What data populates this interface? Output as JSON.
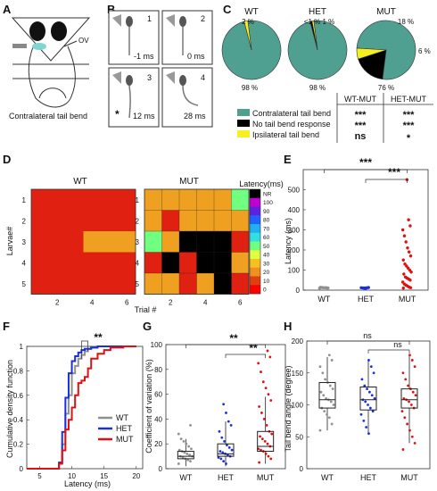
{
  "panels": {
    "A": {
      "letter": "A",
      "ov_label": "OV",
      "caption": "Contralateral tail bend"
    },
    "B": {
      "letter": "B",
      "frames": [
        {
          "num": "1",
          "time": "-1 ms",
          "mark": ""
        },
        {
          "num": "2",
          "time": "0 ms",
          "mark": ""
        },
        {
          "num": "3",
          "time": "12 ms",
          "mark": "*"
        },
        {
          "num": "4",
          "time": "28 ms",
          "mark": ""
        }
      ]
    },
    "C": {
      "letter": "C"
    },
    "D": {
      "letter": "D"
    },
    "E": {
      "letter": "E"
    },
    "F": {
      "letter": "F"
    },
    "G": {
      "letter": "G"
    },
    "H": {
      "letter": "H"
    }
  },
  "chart_data": [
    {
      "id": "C",
      "type": "pie",
      "groups": [
        {
          "name": "WT",
          "slices": [
            98,
            0,
            2
          ],
          "labels": {
            "main": "98 %",
            "ipsi": "2 %"
          }
        },
        {
          "name": "HET",
          "slices": [
            98,
            1,
            1
          ],
          "labels": {
            "main": "98 %",
            "ipsi": "<1 % 1 %"
          }
        },
        {
          "name": "MUT",
          "slices": [
            76,
            18,
            6
          ],
          "labels": {
            "main": "76 %",
            "none": "18 %",
            "ipsi": "6 %"
          }
        }
      ],
      "categories": [
        "Contralateral tail bend",
        "No tail bend response",
        "Ipsilateral tail bend"
      ],
      "colors": [
        "#4fa090",
        "#000000",
        "#f5f020"
      ],
      "table": {
        "headers": [
          "WT-MUT",
          "HET-MUT"
        ],
        "rows": [
          [
            "***",
            "***"
          ],
          [
            "***",
            "***"
          ],
          [
            "ns",
            "*"
          ]
        ]
      }
    },
    {
      "id": "D",
      "type": "heatmap",
      "titles": [
        "WT",
        "MUT"
      ],
      "xlabel": "Trial #",
      "ylabel": "Larvae#",
      "xticks": [
        "2",
        "4",
        "6"
      ],
      "yticks": [
        "1",
        "2",
        "3",
        "4",
        "5"
      ],
      "colorbar_title": "Latency(ms)",
      "colorbar_ticks": [
        "NR",
        "100",
        "90",
        "80",
        "70",
        "60",
        "50",
        "40",
        "30",
        "20",
        "10",
        "0"
      ],
      "colorbar_colors": [
        "#000000",
        "#c000d0",
        "#6020e0",
        "#2060ff",
        "#20b0f0",
        "#30e0e0",
        "#70ff80",
        "#e0ff40",
        "#f5c020",
        "#f09020",
        "#e04010",
        "#ff0000"
      ],
      "WT": [
        [
          10,
          10,
          10,
          10,
          10,
          10
        ],
        [
          10,
          10,
          10,
          10,
          10,
          10
        ],
        [
          10,
          10,
          10,
          20,
          20,
          20
        ],
        [
          10,
          10,
          10,
          10,
          10,
          10
        ],
        [
          10,
          10,
          10,
          10,
          10,
          10
        ]
      ],
      "MUT": [
        [
          20,
          20,
          20,
          20,
          20,
          60
        ],
        [
          20,
          10,
          20,
          20,
          20,
          20
        ],
        [
          60,
          20,
          "NR",
          "NR",
          "NR",
          10
        ],
        [
          10,
          "NR",
          10,
          "NR",
          "NR",
          20
        ],
        [
          20,
          20,
          10,
          20,
          "NR",
          10
        ]
      ]
    },
    {
      "id": "E",
      "type": "scatter",
      "categories": [
        "WT",
        "HET",
        "MUT"
      ],
      "ylabel": "Latency (ms)",
      "ylim": [
        0,
        600
      ],
      "yticks": [
        "0",
        "100",
        "200",
        "300",
        "400",
        "500"
      ],
      "colors": [
        "#909090",
        "#1a2ee0",
        "#e01010"
      ],
      "series": [
        {
          "name": "WT",
          "values": [
            10,
            11,
            12,
            12,
            13,
            14,
            11,
            12
          ]
        },
        {
          "name": "HET",
          "values": [
            9,
            10,
            11,
            12,
            13,
            12,
            10,
            11
          ]
        },
        {
          "name": "MUT",
          "values": [
            10,
            12,
            15,
            20,
            25,
            30,
            40,
            50,
            55,
            60,
            65,
            80,
            90,
            100,
            110,
            120,
            130,
            150,
            170,
            190,
            210,
            240,
            270,
            300,
            320,
            350,
            550
          ]
        }
      ],
      "significance": [
        "***",
        "***"
      ]
    },
    {
      "id": "F",
      "type": "line",
      "xlabel": "Latency (ms)",
      "ylabel": "Cumulative density function",
      "xlim": [
        3,
        21
      ],
      "ylim": [
        0,
        1
      ],
      "xticks": [
        "5",
        "10",
        "15",
        "20"
      ],
      "yticks": [
        "0",
        "0.2",
        "0.4",
        "0.6",
        "0.8",
        "1"
      ],
      "series": [
        {
          "name": "WT",
          "color": "#909090",
          "x": [
            3,
            7,
            8,
            8.5,
            9,
            9.5,
            10,
            10.5,
            11,
            11.5,
            12,
            12.5,
            13,
            14,
            16,
            20
          ],
          "y": [
            0,
            0,
            0.05,
            0.2,
            0.45,
            0.6,
            0.78,
            0.84,
            0.9,
            0.93,
            0.96,
            0.98,
            0.99,
            1,
            1,
            1
          ]
        },
        {
          "name": "HET",
          "color": "#1a2ee0",
          "x": [
            3,
            7,
            8,
            8.5,
            9,
            9.5,
            10,
            10.5,
            11,
            11.5,
            12,
            13,
            14,
            16,
            20
          ],
          "y": [
            0,
            0,
            0.05,
            0.3,
            0.58,
            0.78,
            0.88,
            0.92,
            0.95,
            0.97,
            0.98,
            0.99,
            1,
            1,
            1
          ]
        },
        {
          "name": "MUT",
          "color": "#e01010",
          "x": [
            3,
            7,
            8,
            8.5,
            9,
            9.5,
            10,
            10.5,
            11,
            11.5,
            12,
            12.5,
            13,
            14,
            15,
            16,
            18,
            20
          ],
          "y": [
            0,
            0,
            0.04,
            0.15,
            0.32,
            0.4,
            0.5,
            0.6,
            0.7,
            0.72,
            0.75,
            0.82,
            0.9,
            0.94,
            0.97,
            0.99,
            1,
            1
          ]
        }
      ],
      "significance": "**"
    },
    {
      "id": "G",
      "type": "scatter",
      "categories": [
        "WT",
        "HET",
        "MUT"
      ],
      "ylabel": "Coefficient of variation (%)",
      "ylim": [
        0,
        100
      ],
      "yticks": [
        "0",
        "20",
        "40",
        "60",
        "80",
        "100"
      ],
      "colors": [
        "#909090",
        "#1a2ee0",
        "#e01010"
      ],
      "boxes": [
        {
          "q1": 8,
          "median": 10,
          "q3": 14,
          "wlo": 2,
          "whi": 24
        },
        {
          "q1": 10,
          "median": 12,
          "q3": 20,
          "wlo": 2,
          "whi": 38
        },
        {
          "q1": 14,
          "median": 18,
          "q3": 30,
          "wlo": 4,
          "whi": 58
        }
      ],
      "series": [
        {
          "name": "WT",
          "values": [
            4,
            6,
            7,
            8,
            9,
            10,
            10,
            11,
            12,
            13,
            14,
            15,
            16,
            18,
            20,
            22,
            24,
            28,
            35
          ]
        },
        {
          "name": "HET",
          "values": [
            4,
            6,
            8,
            9,
            10,
            11,
            12,
            13,
            14,
            15,
            17,
            19,
            22,
            25,
            30,
            35,
            38,
            45,
            52
          ]
        },
        {
          "name": "MUT",
          "values": [
            5,
            8,
            10,
            12,
            14,
            15,
            16,
            18,
            20,
            22,
            24,
            26,
            28,
            30,
            35,
            40,
            45,
            50,
            55,
            60,
            65,
            70,
            78,
            85,
            90,
            95
          ]
        }
      ],
      "significance": [
        "**",
        "**"
      ]
    },
    {
      "id": "H",
      "type": "scatter",
      "categories": [
        "WT",
        "HET",
        "MUT"
      ],
      "ylabel": "Tail bend angle (degree)",
      "ylim": [
        0,
        200
      ],
      "yticks": [
        "0",
        "50",
        "100",
        "150",
        "200"
      ],
      "colors": [
        "#909090",
        "#1a2ee0",
        "#e01010"
      ],
      "boxes": [
        {
          "q1": 95,
          "median": 108,
          "q3": 135,
          "wlo": 60,
          "whi": 175
        },
        {
          "q1": 92,
          "median": 108,
          "q3": 128,
          "wlo": 55,
          "whi": 170
        },
        {
          "q1": 95,
          "median": 108,
          "q3": 125,
          "wlo": 40,
          "whi": 178
        }
      ],
      "series": [
        {
          "name": "WT",
          "values": [
            60,
            70,
            80,
            85,
            90,
            95,
            100,
            105,
            108,
            110,
            115,
            120,
            125,
            130,
            135,
            140,
            150,
            160,
            170,
            178
          ]
        },
        {
          "name": "HET",
          "values": [
            55,
            65,
            75,
            85,
            90,
            95,
            100,
            105,
            108,
            110,
            115,
            120,
            125,
            130,
            140,
            150,
            160,
            170
          ]
        },
        {
          "name": "MUT",
          "values": [
            30,
            40,
            50,
            60,
            70,
            80,
            90,
            95,
            100,
            105,
            108,
            110,
            115,
            120,
            125,
            130,
            140,
            150,
            160,
            170,
            178
          ]
        }
      ],
      "significance": [
        "ns",
        "ns"
      ]
    }
  ]
}
